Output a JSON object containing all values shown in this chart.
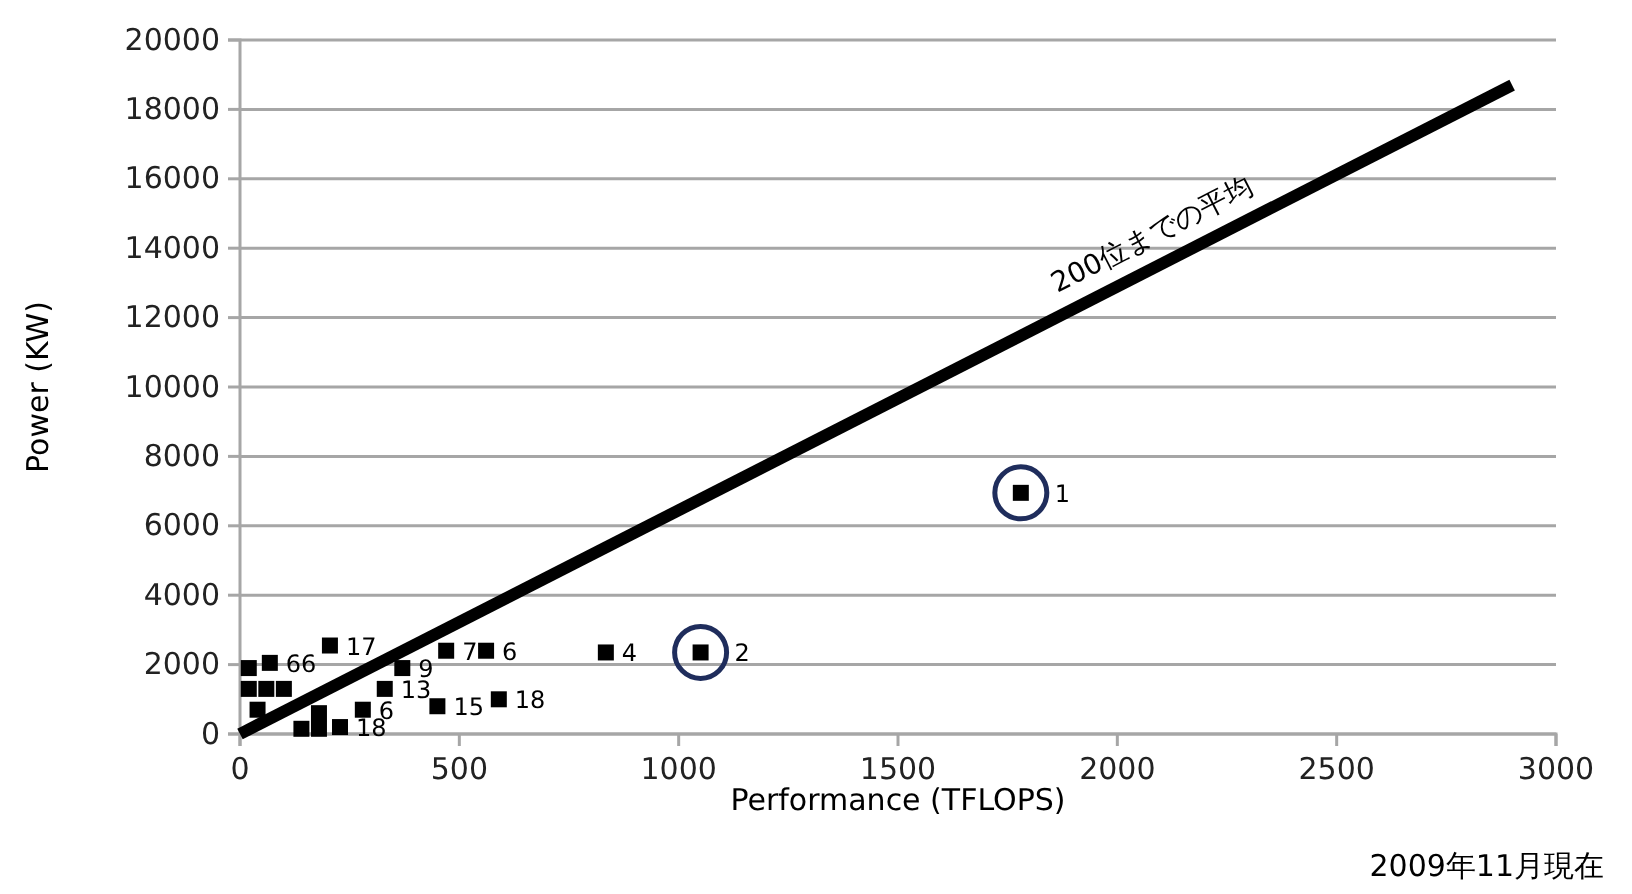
{
  "chart_data": {
    "type": "scatter",
    "xlabel": "Performance (TFLOPS)",
    "ylabel": "Power (KW)",
    "xlim": [
      0,
      3000
    ],
    "xticks": [
      0,
      500,
      1000,
      1500,
      2000,
      2500,
      3000
    ],
    "ylim": [
      0,
      20000
    ],
    "yticks": [
      0,
      2000,
      4000,
      6000,
      8000,
      10000,
      12000,
      14000,
      16000,
      18000,
      20000
    ],
    "grid": "y",
    "marker": "square",
    "annotations": [
      {
        "text": "1",
        "x": 1780,
        "y": 6950
      },
      {
        "text": "2",
        "x": 1050,
        "y": 2350
      },
      {
        "text": "4",
        "x": 834,
        "y": 2350
      },
      {
        "text": "6",
        "x": 561,
        "y": 2400
      },
      {
        "text": "7",
        "x": 470,
        "y": 2400
      },
      {
        "text": "9",
        "x": 370,
        "y": 1900
      },
      {
        "text": "15",
        "x": 450,
        "y": 800
      },
      {
        "text": "18",
        "x": 590,
        "y": 1000
      },
      {
        "text": "6",
        "x": 280,
        "y": 700
      },
      {
        "text": "13",
        "x": 330,
        "y": 1300
      },
      {
        "text": "18",
        "x": 228,
        "y": 200
      },
      {
        "text": "17",
        "x": 205,
        "y": 2550
      },
      {
        "text": "66",
        "x": 68,
        "y": 2050
      },
      "2009年11月現在"
    ],
    "series": [
      {
        "type": "scatter",
        "color": "#000000",
        "x": [
          1780,
          1050,
          834,
          561,
          470,
          370,
          450,
          590,
          280,
          330,
          228,
          205,
          68,
          140,
          180,
          180,
          40,
          20,
          60,
          100,
          20
        ],
        "values": [
          6950,
          2350,
          2350,
          2400,
          2400,
          1900,
          800,
          1000,
          700,
          1300,
          200,
          2550,
          2050,
          150,
          150,
          600,
          700,
          1300,
          1300,
          1300,
          1900
        ]
      },
      {
        "type": "line",
        "name": "200位までの平均",
        "color": "#000000",
        "marker": "none",
        "x": [
          0,
          2900
        ],
        "values": [
          0,
          18700
        ]
      }
    ]
  }
}
